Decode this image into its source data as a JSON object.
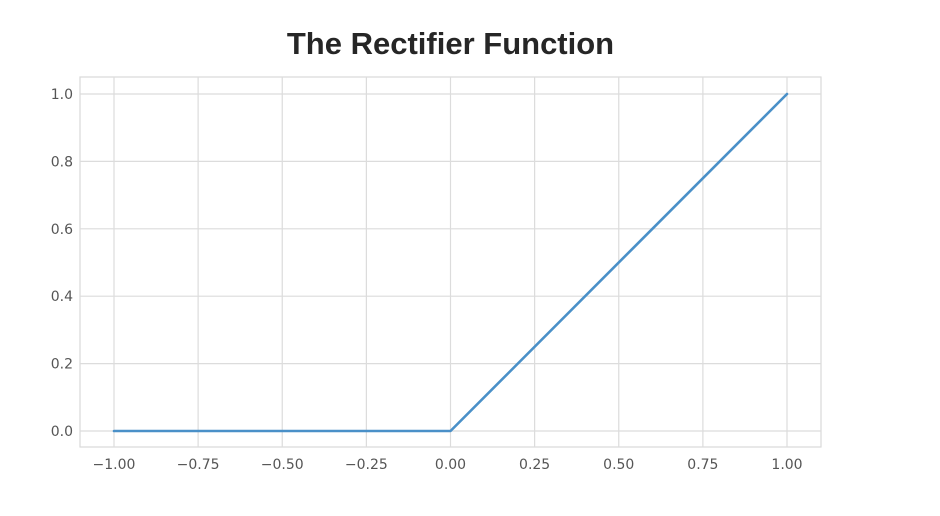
{
  "chart_data": {
    "type": "line",
    "title": "The Rectifier Function",
    "xlabel": "",
    "ylabel": "",
    "xlim": [
      -1.0,
      1.0
    ],
    "ylim": [
      0.0,
      1.0
    ],
    "x_ticks": [
      "−1.00",
      "−0.75",
      "−0.50",
      "−0.25",
      "0.00",
      "0.25",
      "0.50",
      "0.75",
      "1.00"
    ],
    "x_tick_values": [
      -1.0,
      -0.75,
      -0.5,
      -0.25,
      0.0,
      0.25,
      0.5,
      0.75,
      1.0
    ],
    "y_ticks": [
      "0.0",
      "0.2",
      "0.4",
      "0.6",
      "0.8",
      "1.0"
    ],
    "y_tick_values": [
      0.0,
      0.2,
      0.4,
      0.6,
      0.8,
      1.0
    ],
    "grid": true,
    "series": [
      {
        "color": "#4a90c8",
        "x": [
          -1.0,
          0.0,
          1.0
        ],
        "y": [
          0.0,
          0.0,
          1.0
        ]
      }
    ]
  }
}
